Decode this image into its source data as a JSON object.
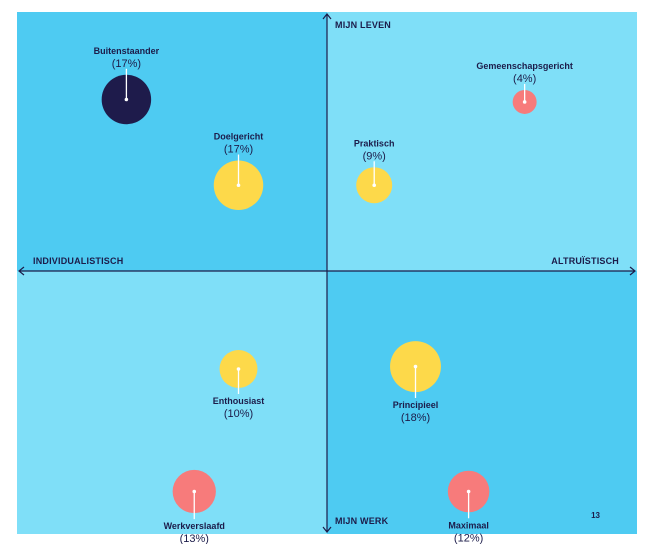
{
  "chart_data": {
    "type": "scatter",
    "title": "",
    "axes": {
      "top": "MIJN LEVEN",
      "bottom": "MIJN WERK",
      "left": "INDIVIDUALISTISCH",
      "right": "ALTRUÏSTISCH"
    },
    "xlim": [
      -10,
      10
    ],
    "ylim": [
      -10,
      10
    ],
    "points": [
      {
        "name": "Buitenstaander",
        "label": "(17%)",
        "value": 17,
        "x": -6.8,
        "y": 7.0,
        "color": "#1e1b4b"
      },
      {
        "name": "Doelgericht",
        "label": "(17%)",
        "value": 17,
        "x": -3.0,
        "y": 3.5,
        "color": "#fdd94a"
      },
      {
        "name": "Praktisch",
        "label": "(9%)",
        "value": 9,
        "x": 1.6,
        "y": 3.5,
        "color": "#fdd94a"
      },
      {
        "name": "Gemeenschapsgericht",
        "label": "(4%)",
        "value": 4,
        "x": 6.7,
        "y": 6.9,
        "color": "#f77b7b"
      },
      {
        "name": "Enthousiast",
        "label": "(10%)",
        "value": 10,
        "x": -3.0,
        "y": -4.0,
        "color": "#fdd94a"
      },
      {
        "name": "Principieel",
        "label": "(18%)",
        "value": 18,
        "x": 3.0,
        "y": -3.9,
        "color": "#fdd94a"
      },
      {
        "name": "Werkverslaafd",
        "label": "(13%)",
        "value": 13,
        "x": -4.5,
        "y": -9.0,
        "color": "#f77b7b"
      },
      {
        "name": "Maximaal",
        "label": "(12%)",
        "value": 12,
        "x": 4.8,
        "y": -9.0,
        "color": "#f77b7b"
      }
    ]
  },
  "colors": {
    "quadrant_tl": "#4ecbf2",
    "quadrant_tr": "#7fdff8",
    "quadrant_bl": "#7fdff8",
    "quadrant_br": "#4ecbf2",
    "axis": "#1c1c4a"
  },
  "page_number": "13"
}
